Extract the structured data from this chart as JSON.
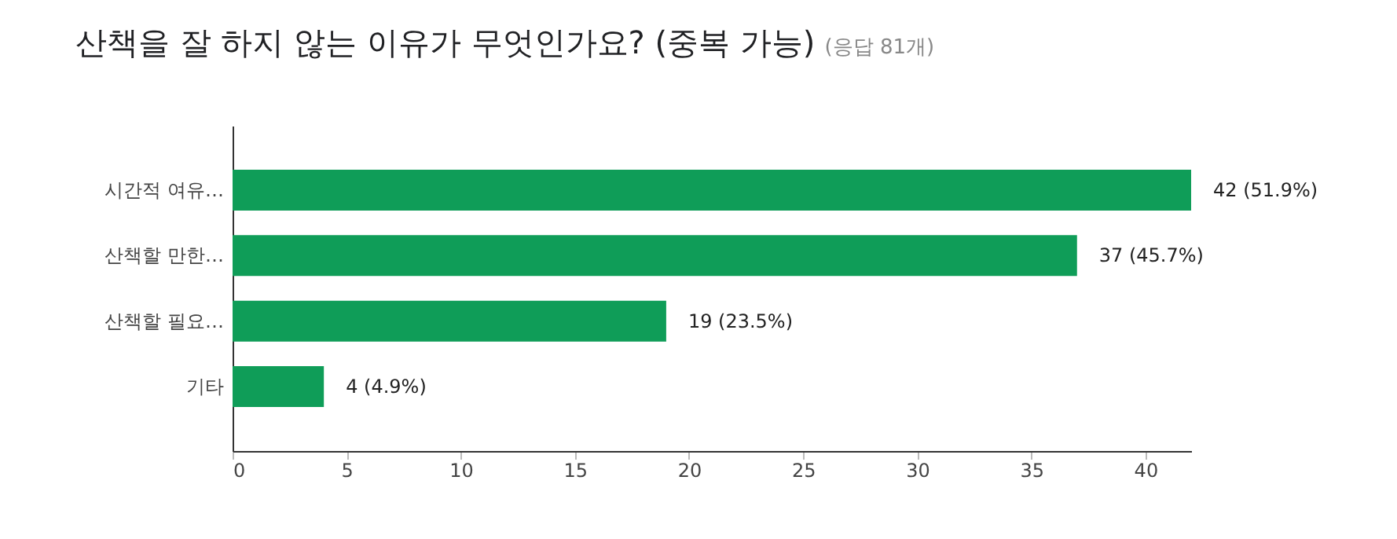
{
  "chart_data": {
    "type": "bar",
    "orientation": "horizontal",
    "title": "산책을 잘 하지 않는 이유가 무엇인가요? (중복 가능)",
    "subtitle": "(응답 81개)",
    "categories": [
      "시간적 여유…",
      "산책할 만한…",
      "산책할 필요…",
      "기타"
    ],
    "values": [
      42,
      37,
      19,
      4
    ],
    "color": "#0f9d58",
    "value_labels": [
      "42 (51.9%)",
      "37 (45.7%)",
      "19 (23.5%)",
      "4 (4.9%)"
    ],
    "xlim": [
      0,
      42
    ],
    "xticks": [
      0,
      5,
      10,
      15,
      20,
      25,
      30,
      35,
      40
    ],
    "grid": false
  }
}
